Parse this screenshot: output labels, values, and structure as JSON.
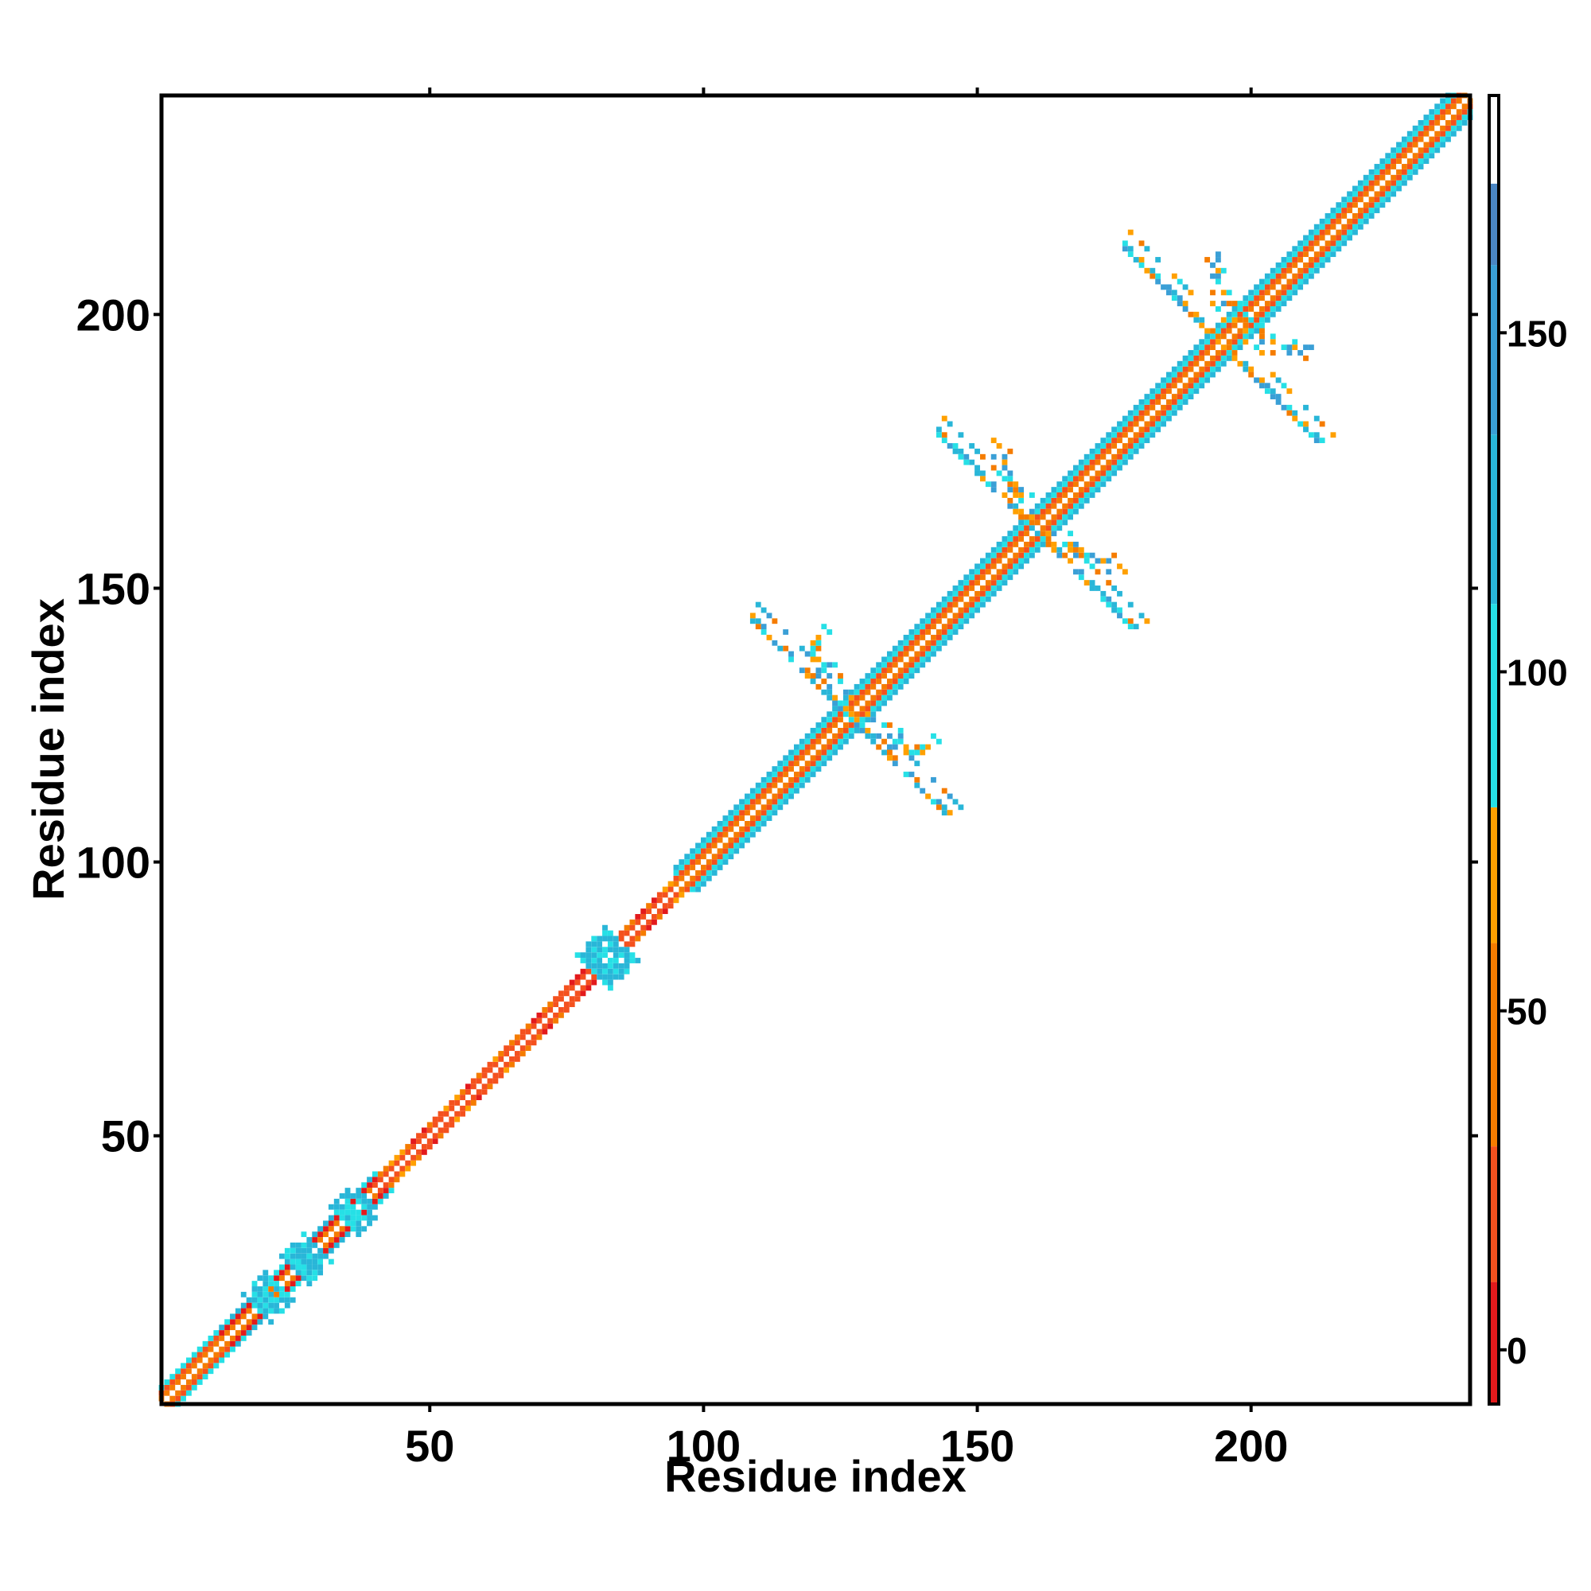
{
  "chart_data": {
    "type": "heatmap",
    "title": "",
    "xlabel": "Residue index",
    "ylabel": "Residue index",
    "xlim": [
      1,
      240
    ],
    "ylim": [
      1,
      240
    ],
    "x_ticks": [
      50,
      100,
      150,
      200
    ],
    "y_ticks": [
      50,
      100,
      150,
      200
    ],
    "x_tick_labels": [
      "50",
      "100",
      "150",
      "200"
    ],
    "y_tick_labels": [
      "50",
      "100",
      "150",
      "200"
    ],
    "symmetric": true,
    "grid": false,
    "colorbar": {
      "range": [
        -8,
        185
      ],
      "ticks": [
        0,
        50,
        100,
        150
      ],
      "tick_labels": [
        "0",
        "50",
        "100",
        "150"
      ],
      "segments": [
        {
          "from": -8,
          "to": 10,
          "color": "#e31a1c"
        },
        {
          "from": 10,
          "to": 30,
          "color": "#f4511e"
        },
        {
          "from": 30,
          "to": 60,
          "color": "#f57c00"
        },
        {
          "from": 60,
          "to": 80,
          "color": "#ffa000"
        },
        {
          "from": 80,
          "to": 110,
          "color": "#26e0e6"
        },
        {
          "from": 110,
          "to": 135,
          "color": "#29b6d8"
        },
        {
          "from": 135,
          "to": 160,
          "color": "#3a9fd6"
        },
        {
          "from": 160,
          "to": 172,
          "color": "#4a86c4"
        },
        {
          "from": 172,
          "to": 185,
          "color": "#ffffff"
        }
      ]
    },
    "colors": {
      "very_near": "#e31a1c",
      "near": "#f4511e",
      "mid_near": "#f57c00",
      "mid": "#ffa000",
      "far_cyan": "#26e0e6",
      "far_blue": "#29b6d8",
      "farther_blue": "#3a9fd6",
      "farthest": "#4a86c4"
    },
    "diagonal_band": [
      {
        "from": 1,
        "to": 12,
        "half_width": 3,
        "style": "beta"
      },
      {
        "from": 12,
        "to": 40,
        "half_width": 3,
        "style": "mixed"
      },
      {
        "from": 40,
        "to": 77,
        "half_width": 2,
        "style": "helix"
      },
      {
        "from": 77,
        "to": 95,
        "half_width": 2,
        "style": "helix"
      },
      {
        "from": 95,
        "to": 240,
        "half_width": 4,
        "style": "beta"
      }
    ],
    "contact_blobs": [
      {
        "center": [
          20,
          20
        ],
        "radius": 4
      },
      {
        "center": [
          27,
          27
        ],
        "radius": 4
      },
      {
        "center": [
          36,
          36
        ],
        "radius": 4
      },
      {
        "center": [
          82,
          82
        ],
        "radius": 5
      }
    ],
    "cross_centers": [
      {
        "center": [
          126,
          126
        ],
        "arm": 18
      },
      {
        "center": [
          160,
          160
        ],
        "arm": 18
      },
      {
        "center": [
          194,
          194
        ],
        "arm": 18
      }
    ],
    "arcs": [
      {
        "center": [
          143,
          143
        ],
        "radius": 22
      },
      {
        "center": [
          177,
          177
        ],
        "radius": 22
      },
      {
        "center": [
          211,
          211
        ],
        "radius": 18
      }
    ]
  }
}
